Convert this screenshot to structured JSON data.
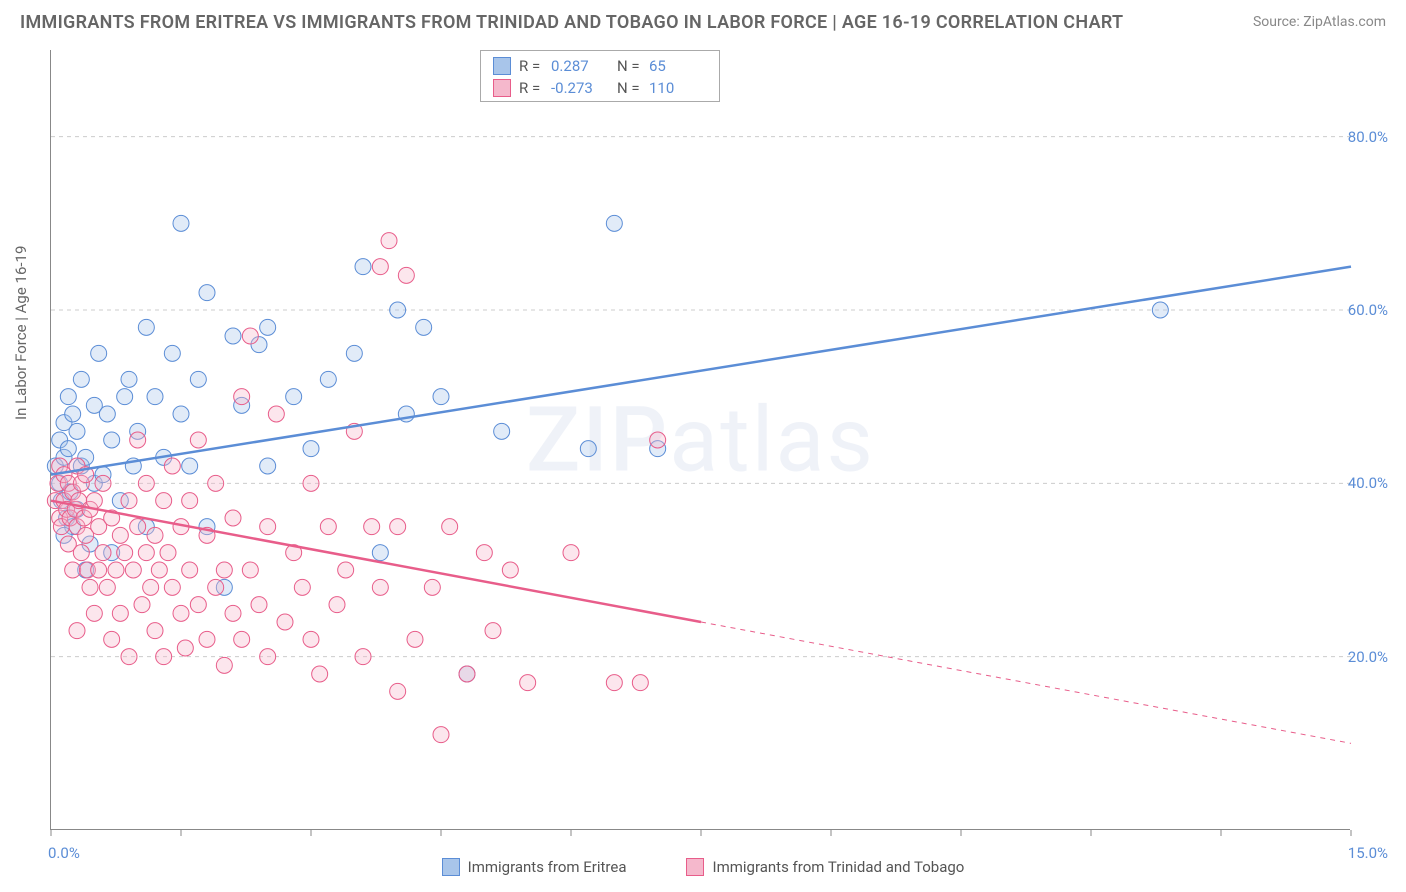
{
  "title": "IMMIGRANTS FROM ERITREA VS IMMIGRANTS FROM TRINIDAD AND TOBAGO IN LABOR FORCE | AGE 16-19 CORRELATION CHART",
  "source": "Source: ZipAtlas.com",
  "ylabel": "In Labor Force | Age 16-19",
  "watermark_left": "ZIP",
  "watermark_right": "atlas",
  "chart": {
    "type": "scatter-correlation",
    "background_color": "#ffffff",
    "grid_color": "#cccccc",
    "axis_color": "#888888",
    "tick_label_color": "#5b8dd6",
    "xlim": [
      0,
      15
    ],
    "ylim": [
      0,
      90
    ],
    "x_ticks": [
      0,
      1.5,
      3,
      4.5,
      6,
      7.5,
      9,
      10.5,
      12,
      13.5,
      15
    ],
    "x_tick_labels": {
      "0": "0.0%",
      "15": "15.0%"
    },
    "y_gridlines": [
      20,
      40,
      60,
      80
    ],
    "y_tick_labels": {
      "20": "20.0%",
      "40": "40.0%",
      "60": "60.0%",
      "80": "80.0%"
    },
    "marker_radius": 8,
    "marker_fill_opacity": 0.35,
    "line_width": 2.5,
    "series": [
      {
        "name": "Immigrants from Eritrea",
        "color": "#5b8dd6",
        "fill": "#a8c5ea",
        "R": "0.287",
        "N": "65",
        "trend": {
          "x1": 0,
          "y1": 41,
          "x2": 15,
          "y2": 65,
          "solid_until_x": 15
        },
        "points": [
          [
            0.05,
            42
          ],
          [
            0.1,
            40
          ],
          [
            0.1,
            45
          ],
          [
            0.12,
            38
          ],
          [
            0.15,
            43
          ],
          [
            0.15,
            47
          ],
          [
            0.18,
            36
          ],
          [
            0.2,
            44
          ],
          [
            0.2,
            50
          ],
          [
            0.22,
            39
          ],
          [
            0.25,
            35
          ],
          [
            0.25,
            48
          ],
          [
            0.3,
            46
          ],
          [
            0.3,
            37
          ],
          [
            0.35,
            42
          ],
          [
            0.35,
            52
          ],
          [
            0.4,
            30
          ],
          [
            0.4,
            43
          ],
          [
            0.45,
            33
          ],
          [
            0.5,
            40
          ],
          [
            0.5,
            49
          ],
          [
            0.55,
            55
          ],
          [
            0.6,
            41
          ],
          [
            0.65,
            48
          ],
          [
            0.7,
            32
          ],
          [
            0.7,
            45
          ],
          [
            0.8,
            38
          ],
          [
            0.85,
            50
          ],
          [
            0.9,
            52
          ],
          [
            0.95,
            42
          ],
          [
            1.0,
            46
          ],
          [
            1.1,
            35
          ],
          [
            1.1,
            58
          ],
          [
            1.2,
            50
          ],
          [
            1.3,
            43
          ],
          [
            1.4,
            55
          ],
          [
            1.5,
            48
          ],
          [
            1.5,
            70
          ],
          [
            1.6,
            42
          ],
          [
            1.7,
            52
          ],
          [
            1.8,
            35
          ],
          [
            1.8,
            62
          ],
          [
            2.0,
            28
          ],
          [
            2.1,
            57
          ],
          [
            2.2,
            49
          ],
          [
            2.4,
            56
          ],
          [
            2.5,
            42
          ],
          [
            2.5,
            58
          ],
          [
            2.8,
            50
          ],
          [
            3.0,
            44
          ],
          [
            3.2,
            52
          ],
          [
            3.5,
            55
          ],
          [
            3.6,
            65
          ],
          [
            3.8,
            32
          ],
          [
            4.0,
            60
          ],
          [
            4.1,
            48
          ],
          [
            4.3,
            58
          ],
          [
            4.5,
            50
          ],
          [
            4.8,
            18
          ],
          [
            5.2,
            46
          ],
          [
            6.2,
            44
          ],
          [
            6.5,
            70
          ],
          [
            7.0,
            44
          ],
          [
            12.8,
            60
          ],
          [
            0.15,
            34
          ]
        ]
      },
      {
        "name": "Immigrants from Trinidad and Tobago",
        "color": "#e85d8a",
        "fill": "#f5b8cc",
        "R": "-0.273",
        "N": "110",
        "trend": {
          "x1": 0,
          "y1": 38,
          "x2": 15,
          "y2": 10,
          "solid_until_x": 7.5
        },
        "points": [
          [
            0.05,
            38
          ],
          [
            0.08,
            40
          ],
          [
            0.1,
            36
          ],
          [
            0.1,
            42
          ],
          [
            0.12,
            35
          ],
          [
            0.15,
            38
          ],
          [
            0.15,
            41
          ],
          [
            0.18,
            37
          ],
          [
            0.2,
            33
          ],
          [
            0.2,
            40
          ],
          [
            0.22,
            36
          ],
          [
            0.25,
            39
          ],
          [
            0.25,
            30
          ],
          [
            0.28,
            37
          ],
          [
            0.3,
            42
          ],
          [
            0.3,
            35
          ],
          [
            0.32,
            38
          ],
          [
            0.35,
            32
          ],
          [
            0.35,
            40
          ],
          [
            0.38,
            36
          ],
          [
            0.4,
            34
          ],
          [
            0.4,
            41
          ],
          [
            0.42,
            30
          ],
          [
            0.45,
            37
          ],
          [
            0.45,
            28
          ],
          [
            0.5,
            38
          ],
          [
            0.5,
            25
          ],
          [
            0.55,
            35
          ],
          [
            0.55,
            30
          ],
          [
            0.6,
            32
          ],
          [
            0.6,
            40
          ],
          [
            0.65,
            28
          ],
          [
            0.7,
            36
          ],
          [
            0.7,
            22
          ],
          [
            0.75,
            30
          ],
          [
            0.8,
            34
          ],
          [
            0.8,
            25
          ],
          [
            0.85,
            32
          ],
          [
            0.9,
            38
          ],
          [
            0.9,
            20
          ],
          [
            0.95,
            30
          ],
          [
            1.0,
            35
          ],
          [
            1.0,
            45
          ],
          [
            1.05,
            26
          ],
          [
            1.1,
            32
          ],
          [
            1.1,
            40
          ],
          [
            1.15,
            28
          ],
          [
            1.2,
            34
          ],
          [
            1.2,
            23
          ],
          [
            1.25,
            30
          ],
          [
            1.3,
            38
          ],
          [
            1.3,
            20
          ],
          [
            1.35,
            32
          ],
          [
            1.4,
            28
          ],
          [
            1.4,
            42
          ],
          [
            1.5,
            35
          ],
          [
            1.5,
            25
          ],
          [
            1.55,
            21
          ],
          [
            1.6,
            30
          ],
          [
            1.6,
            38
          ],
          [
            1.7,
            26
          ],
          [
            1.7,
            45
          ],
          [
            1.8,
            22
          ],
          [
            1.8,
            34
          ],
          [
            1.9,
            28
          ],
          [
            1.9,
            40
          ],
          [
            2.0,
            30
          ],
          [
            2.0,
            19
          ],
          [
            2.1,
            25
          ],
          [
            2.1,
            36
          ],
          [
            2.2,
            50
          ],
          [
            2.2,
            22
          ],
          [
            2.3,
            57
          ],
          [
            2.3,
            30
          ],
          [
            2.4,
            26
          ],
          [
            2.5,
            35
          ],
          [
            2.5,
            20
          ],
          [
            2.6,
            48
          ],
          [
            2.7,
            24
          ],
          [
            2.8,
            32
          ],
          [
            2.9,
            28
          ],
          [
            3.0,
            22
          ],
          [
            3.0,
            40
          ],
          [
            3.1,
            18
          ],
          [
            3.2,
            35
          ],
          [
            3.3,
            26
          ],
          [
            3.4,
            30
          ],
          [
            3.5,
            46
          ],
          [
            3.6,
            20
          ],
          [
            3.7,
            35
          ],
          [
            3.8,
            65
          ],
          [
            3.8,
            28
          ],
          [
            3.9,
            68
          ],
          [
            4.0,
            16
          ],
          [
            4.0,
            35
          ],
          [
            4.1,
            64
          ],
          [
            4.2,
            22
          ],
          [
            4.4,
            28
          ],
          [
            4.5,
            11
          ],
          [
            4.6,
            35
          ],
          [
            4.8,
            18
          ],
          [
            5.0,
            32
          ],
          [
            5.1,
            23
          ],
          [
            5.3,
            30
          ],
          [
            5.5,
            17
          ],
          [
            6.0,
            32
          ],
          [
            6.5,
            17
          ],
          [
            6.8,
            17
          ],
          [
            7.0,
            45
          ],
          [
            0.3,
            23
          ]
        ]
      }
    ]
  },
  "legend_bottom": [
    {
      "label": "Immigrants from Eritrea",
      "fill": "#a8c5ea",
      "stroke": "#5b8dd6"
    },
    {
      "label": "Immigrants from Trinidad and Tobago",
      "fill": "#f5b8cc",
      "stroke": "#e85d8a"
    }
  ]
}
